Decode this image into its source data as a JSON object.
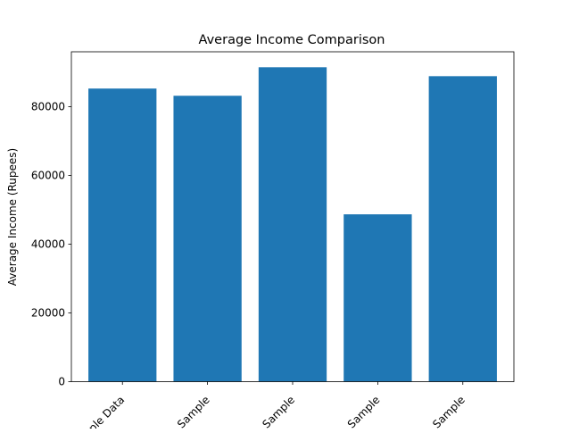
{
  "chart_data": {
    "type": "bar",
    "title": "Average Income Comparison",
    "xlabel": "",
    "ylabel": "Average Income (Rupees)",
    "categories": [
      "ple Data",
      "Sample",
      "Sample",
      "Sample",
      "Sample"
    ],
    "values": [
      85300,
      83200,
      91500,
      48700,
      88900
    ],
    "ylim": [
      0,
      96000
    ],
    "yticks": [
      0,
      20000,
      40000,
      60000,
      80000
    ],
    "bar_color": "#1f77b4",
    "grid": false,
    "legend": "none",
    "xtick_rotation": 45
  }
}
